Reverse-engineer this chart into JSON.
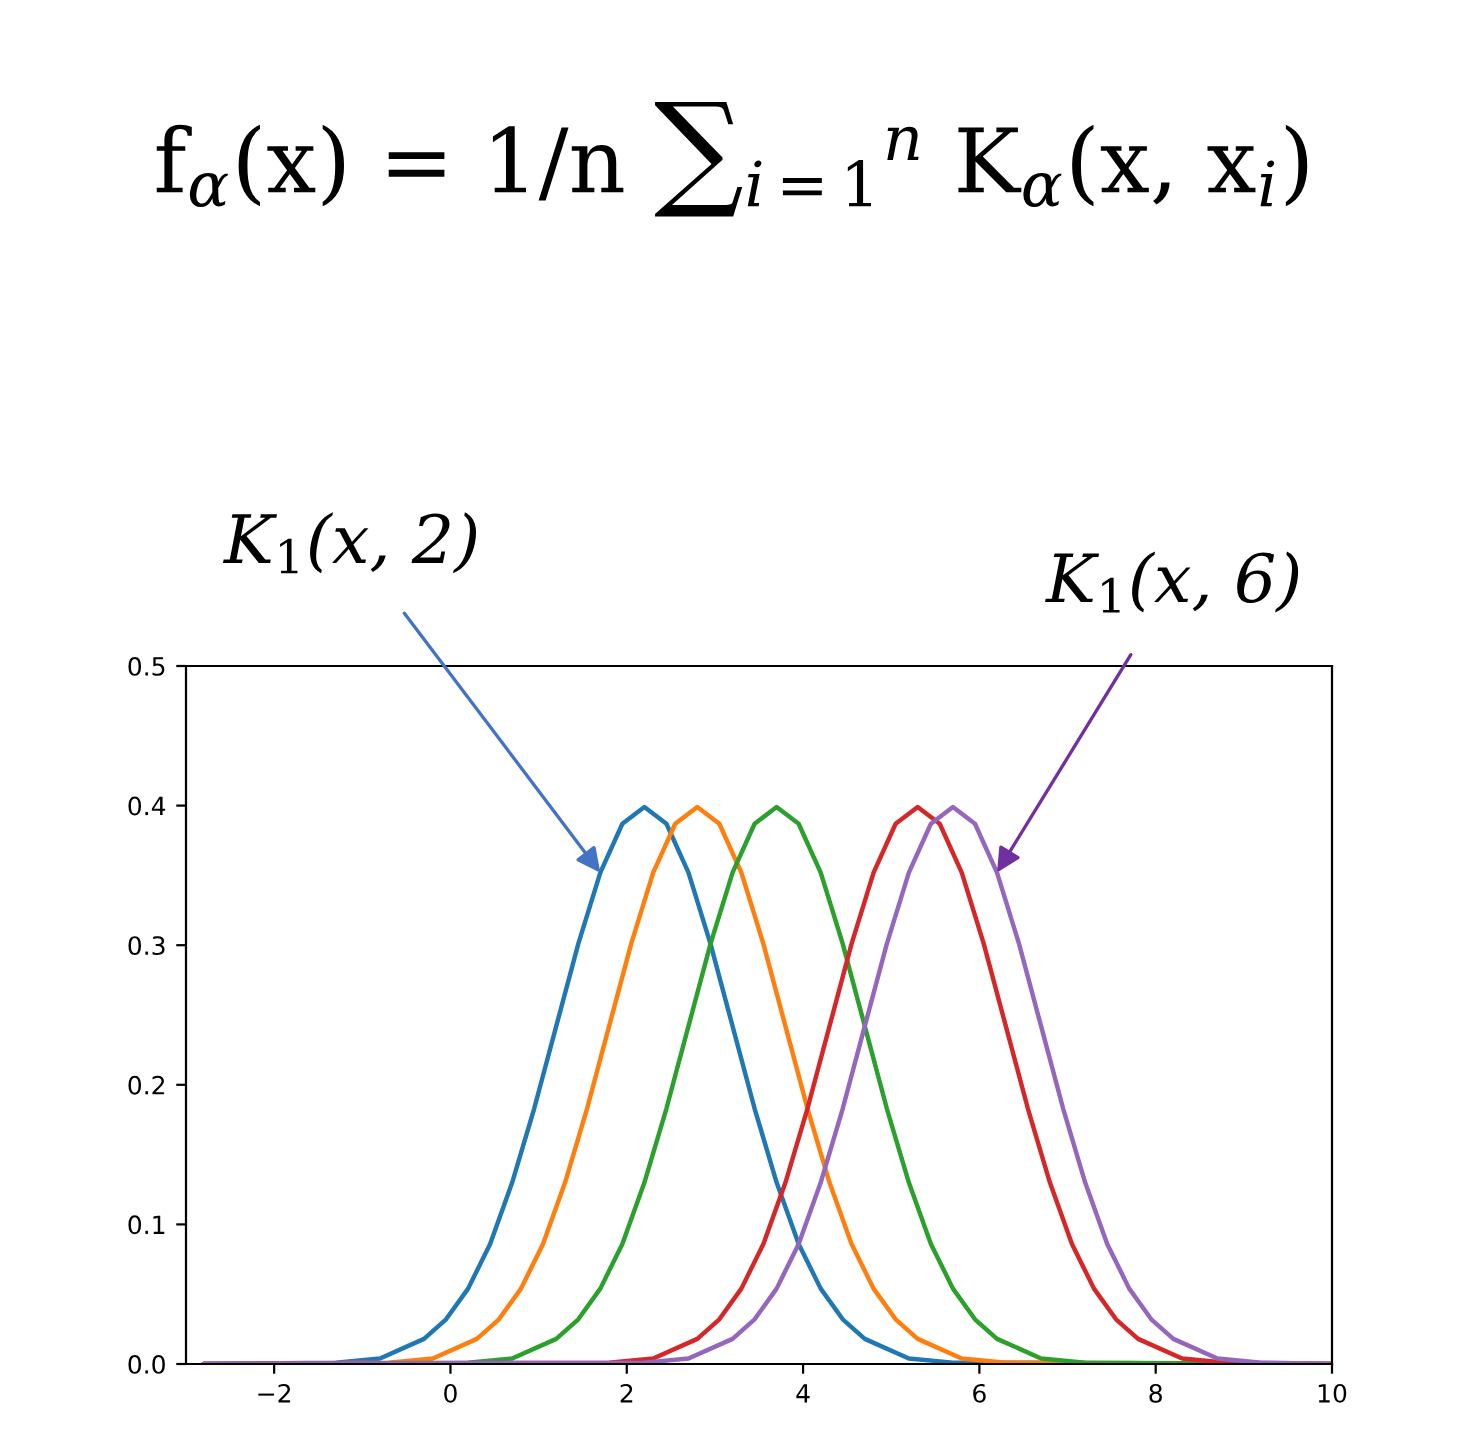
{
  "chart_data": {
    "type": "line",
    "title": "f$_{α}$(x) = 1/n ∑$_{i=1}$$^{n}$ K$_{α}$(x, x$_{i}$)",
    "xlim": [
      -3,
      10
    ],
    "ylim": [
      0,
      0.5
    ],
    "xticks": [
      {
        "value": -2,
        "label": "−2"
      },
      0,
      2,
      4,
      6,
      8,
      10
    ],
    "yticks": [
      {
        "value": 0,
        "label": "0.0"
      },
      0.1,
      0.2,
      0.3,
      0.4,
      0.5
    ],
    "grid": false,
    "legend": false,
    "annotations": [
      {
        "text": "K$_{1}$(x, 2)",
        "x": 1.7,
        "y": 0.352
      },
      {
        "text": "K$_{1}$(x, 6)",
        "x": 6.2,
        "y": 0.352
      }
    ],
    "series": [
      {
        "color": "#1f77b4",
        "x": [
          -2.8,
          -1.3,
          -0.8,
          -0.3,
          -0.05,
          0.2,
          0.45,
          0.7,
          0.95,
          1.2,
          1.45,
          1.7,
          1.95,
          2.2,
          2.45,
          2.7,
          2.95,
          3.2,
          3.45,
          3.7,
          3.95,
          4.2,
          4.45,
          4.7,
          5.2,
          5.7,
          10
        ],
        "values": [
          0,
          0.001,
          0.004,
          0.018,
          0.032,
          0.054,
          0.086,
          0.13,
          0.183,
          0.242,
          0.301,
          0.352,
          0.387,
          0.399,
          0.387,
          0.352,
          0.301,
          0.242,
          0.183,
          0.13,
          0.086,
          0.054,
          0.032,
          0.018,
          0.004,
          0.001,
          0
        ]
      },
      {
        "color": "#ff7f0e",
        "x": [
          -2.8,
          -0.7,
          -0.2,
          0.3,
          0.55,
          0.8,
          1.05,
          1.3,
          1.55,
          1.8,
          2.05,
          2.3,
          2.55,
          2.8,
          3.05,
          3.3,
          3.55,
          3.8,
          4.05,
          4.3,
          4.55,
          4.8,
          5.05,
          5.3,
          5.8,
          6.3,
          10
        ],
        "values": [
          0,
          0.001,
          0.004,
          0.018,
          0.032,
          0.054,
          0.086,
          0.13,
          0.183,
          0.242,
          0.301,
          0.352,
          0.387,
          0.399,
          0.387,
          0.352,
          0.301,
          0.242,
          0.183,
          0.13,
          0.086,
          0.054,
          0.032,
          0.018,
          0.004,
          0.001,
          0
        ]
      },
      {
        "color": "#2ca02c",
        "x": [
          -2.8,
          0.2,
          0.7,
          1.2,
          1.45,
          1.7,
          1.95,
          2.2,
          2.45,
          2.7,
          2.95,
          3.2,
          3.45,
          3.7,
          3.95,
          4.2,
          4.45,
          4.7,
          4.95,
          5.2,
          5.45,
          5.7,
          5.95,
          6.2,
          6.7,
          7.2,
          10
        ],
        "values": [
          0,
          0.001,
          0.004,
          0.018,
          0.032,
          0.054,
          0.086,
          0.13,
          0.183,
          0.242,
          0.301,
          0.352,
          0.387,
          0.399,
          0.387,
          0.352,
          0.301,
          0.242,
          0.183,
          0.13,
          0.086,
          0.054,
          0.032,
          0.018,
          0.004,
          0.001,
          0
        ]
      },
      {
        "color": "#d62728",
        "x": [
          -2.8,
          1.8,
          2.3,
          2.8,
          3.05,
          3.3,
          3.55,
          3.8,
          4.05,
          4.3,
          4.55,
          4.8,
          5.05,
          5.3,
          5.55,
          5.8,
          6.05,
          6.3,
          6.55,
          6.8,
          7.05,
          7.3,
          7.55,
          7.8,
          8.3,
          8.8,
          10
        ],
        "values": [
          0,
          0.001,
          0.004,
          0.018,
          0.032,
          0.054,
          0.086,
          0.13,
          0.183,
          0.242,
          0.301,
          0.352,
          0.387,
          0.399,
          0.387,
          0.352,
          0.301,
          0.242,
          0.183,
          0.13,
          0.086,
          0.054,
          0.032,
          0.018,
          0.004,
          0.001,
          0
        ]
      },
      {
        "color": "#9467bd",
        "x": [
          -2.8,
          2.2,
          2.7,
          3.2,
          3.45,
          3.7,
          3.95,
          4.2,
          4.45,
          4.7,
          4.95,
          5.2,
          5.45,
          5.7,
          5.95,
          6.2,
          6.45,
          6.7,
          6.95,
          7.2,
          7.45,
          7.7,
          7.95,
          8.2,
          8.7,
          9.2,
          10
        ],
        "values": [
          0,
          0.001,
          0.004,
          0.018,
          0.032,
          0.054,
          0.086,
          0.13,
          0.183,
          0.242,
          0.301,
          0.352,
          0.387,
          0.399,
          0.387,
          0.352,
          0.301,
          0.242,
          0.183,
          0.13,
          0.086,
          0.054,
          0.032,
          0.018,
          0.004,
          0.001,
          0
        ]
      }
    ]
  }
}
